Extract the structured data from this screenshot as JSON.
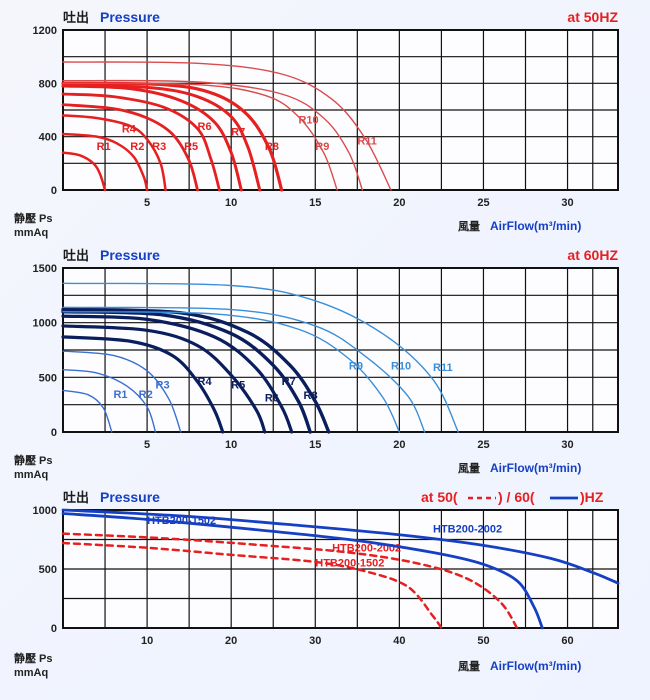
{
  "common": {
    "title_cn": "吐出",
    "title_en": "Pressure",
    "yaxis_cn1": "静壓 Ps",
    "yaxis_cn2": "mmAq",
    "xaxis_cn": "風量",
    "xaxis_en": "AirFlow(m³/min)"
  },
  "panel1": {
    "hz": "at  50HZ",
    "ylim": [
      0,
      1200
    ],
    "ytick_step": 400,
    "xlim": [
      0,
      33
    ],
    "xticks": [
      5,
      10,
      15,
      20,
      25,
      30
    ],
    "background": "#fdfdff",
    "grid_color": "#111",
    "series": [
      {
        "name": "R1",
        "color": "#e62020",
        "width": 2.5,
        "label_xy": [
          2,
          300
        ],
        "pts": [
          [
            0,
            280
          ],
          [
            1,
            260
          ],
          [
            1.8,
            200
          ],
          [
            2.2,
            120
          ],
          [
            2.5,
            0
          ]
        ]
      },
      {
        "name": "R2",
        "color": "#e62020",
        "width": 2.5,
        "label_xy": [
          4,
          300
        ],
        "pts": [
          [
            0,
            420
          ],
          [
            2,
            400
          ],
          [
            3.2,
            350
          ],
          [
            4.2,
            250
          ],
          [
            4.8,
            100
          ],
          [
            5,
            0
          ]
        ]
      },
      {
        "name": "R3",
        "color": "#e62020",
        "width": 2.5,
        "label_xy": [
          5.3,
          300
        ],
        "pts": [
          [
            0,
            560
          ],
          [
            2,
            540
          ],
          [
            4,
            480
          ],
          [
            5,
            380
          ],
          [
            5.8,
            200
          ],
          [
            6.1,
            0
          ]
        ]
      },
      {
        "name": "R4",
        "color": "#e62020",
        "width": 2.8,
        "label_xy": [
          3.5,
          430
        ],
        "pts": [
          [
            0,
            640
          ],
          [
            3,
            610
          ],
          [
            5,
            540
          ],
          [
            6.5,
            420
          ],
          [
            7.5,
            220
          ],
          [
            8,
            0
          ]
        ]
      },
      {
        "name": "R5",
        "color": "#e62020",
        "width": 2.8,
        "label_xy": [
          7.2,
          300
        ],
        "pts": [
          [
            0,
            720
          ],
          [
            3,
            700
          ],
          [
            6,
            620
          ],
          [
            8,
            460
          ],
          [
            8.8,
            230
          ],
          [
            9.3,
            0
          ]
        ]
      },
      {
        "name": "R6",
        "color": "#e62020",
        "width": 3,
        "label_xy": [
          8,
          450
        ],
        "pts": [
          [
            0,
            780
          ],
          [
            4,
            760
          ],
          [
            7,
            670
          ],
          [
            9,
            510
          ],
          [
            10,
            280
          ],
          [
            10.6,
            0
          ]
        ]
      },
      {
        "name": "R7",
        "color": "#e62020",
        "width": 3,
        "label_xy": [
          10,
          410
        ],
        "pts": [
          [
            0,
            780
          ],
          [
            5,
            770
          ],
          [
            8,
            700
          ],
          [
            10,
            550
          ],
          [
            11,
            320
          ],
          [
            11.7,
            0
          ]
        ]
      },
      {
        "name": "R8",
        "color": "#e62020",
        "width": 3.2,
        "label_xy": [
          12,
          300
        ],
        "pts": [
          [
            0,
            800
          ],
          [
            6,
            790
          ],
          [
            9,
            720
          ],
          [
            11,
            560
          ],
          [
            12.3,
            300
          ],
          [
            13,
            0
          ]
        ]
      },
      {
        "name": "R9",
        "color": "#d94c4c",
        "width": 1.4,
        "label_xy": [
          15,
          300
        ],
        "pts": [
          [
            0,
            800
          ],
          [
            8,
            790
          ],
          [
            12,
            710
          ],
          [
            14,
            550
          ],
          [
            15.5,
            280
          ],
          [
            16.3,
            0
          ]
        ]
      },
      {
        "name": "R10",
        "color": "#d94c4c",
        "width": 1.4,
        "label_xy": [
          14,
          500
        ],
        "pts": [
          [
            0,
            820
          ],
          [
            8,
            810
          ],
          [
            13,
            720
          ],
          [
            15.5,
            540
          ],
          [
            17,
            280
          ],
          [
            17.8,
            0
          ]
        ]
      },
      {
        "name": "R11",
        "color": "#d94c4c",
        "width": 1.4,
        "label_xy": [
          17.5,
          340
        ],
        "pts": [
          [
            0,
            960
          ],
          [
            8,
            950
          ],
          [
            13,
            870
          ],
          [
            16,
            680
          ],
          [
            18,
            380
          ],
          [
            19.5,
            0
          ]
        ]
      }
    ]
  },
  "panel2": {
    "hz": "at  60HZ",
    "ylim": [
      0,
      1500
    ],
    "ytick_step": 500,
    "xlim": [
      0,
      33
    ],
    "xticks": [
      5,
      10,
      15,
      20,
      25,
      30
    ],
    "background": "#fdfdff",
    "grid_color": "#111",
    "series": [
      {
        "name": "R1",
        "color": "#3a6fcf",
        "width": 1.4,
        "label_xy": [
          3,
          310
        ],
        "pts": [
          [
            0,
            380
          ],
          [
            1.5,
            340
          ],
          [
            2.4,
            220
          ],
          [
            2.9,
            0
          ]
        ]
      },
      {
        "name": "R2",
        "color": "#3a6fcf",
        "width": 1.4,
        "label_xy": [
          4.5,
          310
        ],
        "pts": [
          [
            0,
            570
          ],
          [
            2,
            540
          ],
          [
            3.8,
            420
          ],
          [
            5,
            230
          ],
          [
            5.5,
            0
          ]
        ]
      },
      {
        "name": "R3",
        "color": "#3a6fcf",
        "width": 1.4,
        "label_xy": [
          5.5,
          400
        ],
        "pts": [
          [
            0,
            740
          ],
          [
            3,
            700
          ],
          [
            5,
            560
          ],
          [
            6.3,
            300
          ],
          [
            7,
            0
          ]
        ]
      },
      {
        "name": "R4",
        "color": "#0a1e5e",
        "width": 3.2,
        "label_xy": [
          8,
          430
        ],
        "pts": [
          [
            0,
            870
          ],
          [
            4,
            830
          ],
          [
            6.5,
            700
          ],
          [
            8,
            460
          ],
          [
            9,
            200
          ],
          [
            9.5,
            0
          ]
        ]
      },
      {
        "name": "R5",
        "color": "#0a1e5e",
        "width": 3.2,
        "label_xy": [
          10,
          400
        ],
        "pts": [
          [
            0,
            970
          ],
          [
            5,
            930
          ],
          [
            8,
            790
          ],
          [
            10,
            520
          ],
          [
            11.5,
            200
          ],
          [
            12,
            0
          ]
        ]
      },
      {
        "name": "R6",
        "color": "#0a1e5e",
        "width": 3.2,
        "label_xy": [
          12,
          280
        ],
        "pts": [
          [
            0,
            1060
          ],
          [
            5,
            1030
          ],
          [
            9,
            870
          ],
          [
            11.5,
            580
          ],
          [
            13,
            230
          ],
          [
            13.6,
            0
          ]
        ]
      },
      {
        "name": "R7",
        "color": "#0a1e5e",
        "width": 3.4,
        "label_xy": [
          13,
          430
        ],
        "pts": [
          [
            0,
            1100
          ],
          [
            6,
            1070
          ],
          [
            10,
            900
          ],
          [
            12.5,
            610
          ],
          [
            14,
            280
          ],
          [
            14.7,
            0
          ]
        ]
      },
      {
        "name": "R8",
        "color": "#0a1e5e",
        "width": 3.4,
        "label_xy": [
          14.3,
          300
        ],
        "pts": [
          [
            0,
            1120
          ],
          [
            7,
            1090
          ],
          [
            11,
            910
          ],
          [
            13.5,
            610
          ],
          [
            15,
            280
          ],
          [
            15.8,
            0
          ]
        ]
      },
      {
        "name": "R9",
        "color": "#3a8fd8",
        "width": 1.4,
        "label_xy": [
          17,
          570
        ],
        "pts": [
          [
            0,
            1100
          ],
          [
            9,
            1080
          ],
          [
            14,
            940
          ],
          [
            17,
            670
          ],
          [
            19,
            320
          ],
          [
            20,
            0
          ]
        ]
      },
      {
        "name": "R10",
        "color": "#3a8fd8",
        "width": 1.4,
        "label_xy": [
          19.5,
          570
        ],
        "pts": [
          [
            0,
            1140
          ],
          [
            10,
            1120
          ],
          [
            15,
            970
          ],
          [
            18,
            690
          ],
          [
            20.5,
            330
          ],
          [
            21.5,
            0
          ]
        ]
      },
      {
        "name": "R11",
        "color": "#3a8fd8",
        "width": 1.4,
        "label_xy": [
          22,
          560
        ],
        "pts": [
          [
            0,
            1360
          ],
          [
            10,
            1340
          ],
          [
            15,
            1200
          ],
          [
            19,
            900
          ],
          [
            22,
            480
          ],
          [
            23.5,
            0
          ]
        ]
      }
    ]
  },
  "panel3": {
    "hz_prefix": "at  50(",
    "hz_mid": ") / 60(",
    "hz_suffix": ")HZ",
    "dash_color": "#e62020",
    "solid_color": "#1540c4",
    "ylim": [
      0,
      1000
    ],
    "ytick_step": 500,
    "xlim": [
      0,
      66
    ],
    "xticks": [
      10,
      20,
      30,
      40,
      50,
      60
    ],
    "background": "#fdfdff",
    "grid_color": "#111",
    "series": [
      {
        "name": "HTB200-1502",
        "color": "#e62020",
        "width": 2.5,
        "dash": "6,5",
        "label_xy": [
          30,
          520
        ],
        "pts": [
          [
            0,
            720
          ],
          [
            10,
            680
          ],
          [
            20,
            620
          ],
          [
            30,
            560
          ],
          [
            36,
            480
          ],
          [
            41,
            350
          ],
          [
            44,
            100
          ],
          [
            45,
            0
          ]
        ]
      },
      {
        "name": "HTB200-2002",
        "color": "#e62020",
        "width": 2.5,
        "dash": "6,5",
        "label_xy": [
          32,
          650
        ],
        "pts": [
          [
            0,
            800
          ],
          [
            12,
            760
          ],
          [
            24,
            700
          ],
          [
            34,
            640
          ],
          [
            42,
            550
          ],
          [
            48,
            420
          ],
          [
            52,
            220
          ],
          [
            54,
            0
          ]
        ]
      },
      {
        "name": "HTB200-1502",
        "color": "#1540c4",
        "width": 2.8,
        "dash": "",
        "label_xy": [
          10,
          880
        ],
        "pts": [
          [
            0,
            970
          ],
          [
            10,
            920
          ],
          [
            22,
            840
          ],
          [
            34,
            750
          ],
          [
            44,
            640
          ],
          [
            50,
            540
          ],
          [
            54,
            400
          ],
          [
            56,
            180
          ],
          [
            57,
            0
          ]
        ]
      },
      {
        "name": "HTB200-2002",
        "color": "#1540c4",
        "width": 2.8,
        "dash": "",
        "label_xy": [
          44,
          810
        ],
        "pts": [
          [
            0,
            1000
          ],
          [
            14,
            950
          ],
          [
            28,
            870
          ],
          [
            40,
            790
          ],
          [
            50,
            700
          ],
          [
            58,
            590
          ],
          [
            63,
            470
          ],
          [
            66,
            380
          ]
        ]
      }
    ]
  }
}
